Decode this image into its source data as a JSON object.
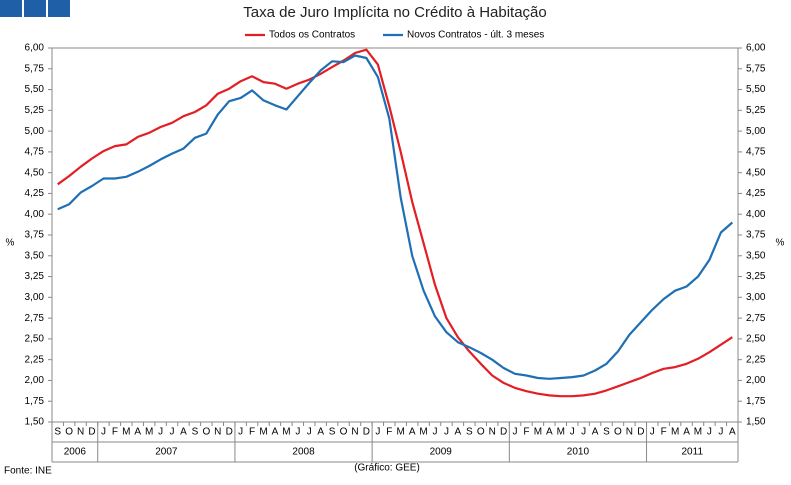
{
  "chart_data": {
    "type": "line",
    "title": "Taxa de Juro Implícita no Crédito à Habitação",
    "y_label": "%",
    "y2_label": "%",
    "source": "Fonte: INE",
    "credit": "(Gráfico: GEE)",
    "categories": [
      "S",
      "O",
      "N",
      "D",
      "J",
      "F",
      "M",
      "A",
      "M",
      "J",
      "J",
      "A",
      "S",
      "O",
      "N",
      "D",
      "J",
      "F",
      "M",
      "A",
      "M",
      "J",
      "J",
      "A",
      "S",
      "O",
      "N",
      "D",
      "J",
      "F",
      "M",
      "A",
      "M",
      "J",
      "J",
      "A",
      "S",
      "O",
      "N",
      "D",
      "J",
      "F",
      "M",
      "A",
      "M",
      "J",
      "J",
      "A",
      "S",
      "O",
      "N",
      "D",
      "J",
      "F",
      "M",
      "A",
      "M",
      "J",
      "J",
      "A"
    ],
    "years": [
      "2006",
      "2007",
      "2008",
      "2009",
      "2010",
      "2011"
    ],
    "series": [
      {
        "name": "Todos os Contratos",
        "color": "#e31e24",
        "values": [
          4.36,
          4.46,
          4.57,
          4.67,
          4.76,
          4.82,
          4.84,
          4.93,
          4.98,
          5.05,
          5.1,
          5.18,
          5.23,
          5.31,
          5.45,
          5.51,
          5.6,
          5.66,
          5.59,
          5.57,
          5.51,
          5.57,
          5.62,
          5.69,
          5.77,
          5.85,
          5.94,
          5.98,
          5.8,
          5.3,
          4.75,
          4.15,
          3.65,
          3.15,
          2.75,
          2.52,
          2.35,
          2.2,
          2.06,
          1.97,
          1.91,
          1.87,
          1.84,
          1.82,
          1.81,
          1.81,
          1.82,
          1.84,
          1.88,
          1.93,
          1.98,
          2.03,
          2.09,
          2.14,
          2.16,
          2.2,
          2.26,
          2.34,
          2.43,
          2.52
        ]
      },
      {
        "name": "Novos Contratos - últ. 3 meses",
        "color": "#1f6fb4",
        "values": [
          4.06,
          4.12,
          4.26,
          4.34,
          4.43,
          4.43,
          4.45,
          4.51,
          4.58,
          4.66,
          4.73,
          4.79,
          4.92,
          4.97,
          5.2,
          5.36,
          5.4,
          5.49,
          5.37,
          5.31,
          5.26,
          5.42,
          5.58,
          5.73,
          5.84,
          5.83,
          5.91,
          5.88,
          5.65,
          5.15,
          4.2,
          3.5,
          3.08,
          2.77,
          2.58,
          2.46,
          2.4,
          2.33,
          2.25,
          2.15,
          2.08,
          2.06,
          2.03,
          2.02,
          2.03,
          2.04,
          2.06,
          2.12,
          2.2,
          2.35,
          2.55,
          2.7,
          2.85,
          2.98,
          3.08,
          3.13,
          3.25,
          3.45,
          3.78,
          3.9
        ]
      }
    ],
    "ylim": [
      1.5,
      6.0
    ],
    "yticks": [
      {
        "value": 1.5,
        "label": "1,50"
      },
      {
        "value": 1.75,
        "label": "1,75"
      },
      {
        "value": 2,
        "label": "2,00"
      },
      {
        "value": 2.25,
        "label": "2,25"
      },
      {
        "value": 2.5,
        "label": "2,50"
      },
      {
        "value": 2.75,
        "label": "2,75"
      },
      {
        "value": 3,
        "label": "3,00"
      },
      {
        "value": 3.25,
        "label": "3,25"
      },
      {
        "value": 3.5,
        "label": "3,50"
      },
      {
        "value": 3.75,
        "label": "3,75"
      },
      {
        "value": 4,
        "label": "4,00"
      },
      {
        "value": 4.25,
        "label": "4,25"
      },
      {
        "value": 4.5,
        "label": "4,50"
      },
      {
        "value": 4.75,
        "label": "4,75"
      },
      {
        "value": 5,
        "label": "5,00"
      },
      {
        "value": 5.25,
        "label": "5,25"
      },
      {
        "value": 5.5,
        "label": "5,50"
      },
      {
        "value": 5.75,
        "label": "5,75"
      },
      {
        "value": 6,
        "label": "6,00"
      }
    ],
    "y2lim": [
      1.5,
      6.0
    ],
    "y2ticks": [
      {
        "value": 1.5,
        "label": "1,50"
      },
      {
        "value": 1.75,
        "label": "1,75"
      },
      {
        "value": 2,
        "label": "2,00"
      },
      {
        "value": 2.25,
        "label": "2,25"
      },
      {
        "value": 2.5,
        "label": "2,50"
      },
      {
        "value": 2.75,
        "label": "2,75"
      },
      {
        "value": 3,
        "label": "3,00"
      },
      {
        "value": 3.25,
        "label": "3,25"
      },
      {
        "value": 3.5,
        "label": "3,50"
      },
      {
        "value": 3.75,
        "label": "3,75"
      },
      {
        "value": 4,
        "label": "4,00"
      },
      {
        "value": 4.25,
        "label": "4,25"
      },
      {
        "value": 4.5,
        "label": "4,50"
      },
      {
        "value": 4.75,
        "label": "4,75"
      },
      {
        "value": 5,
        "label": "5,00"
      },
      {
        "value": 5.25,
        "label": "5,25"
      },
      {
        "value": 5.5,
        "label": "5,50"
      },
      {
        "value": 5.75,
        "label": "5,75"
      },
      {
        "value": 6,
        "label": "6,00"
      }
    ],
    "grid": false,
    "legend": "top"
  }
}
